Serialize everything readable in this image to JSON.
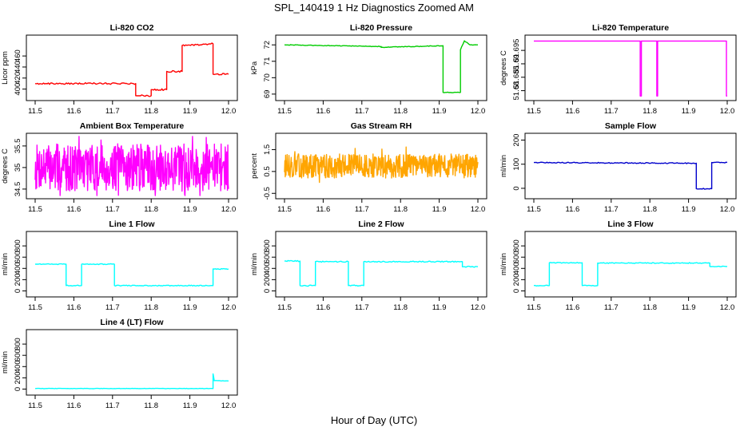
{
  "figure": {
    "title": "SPL_140419  1 Hz Diagnostics Zoomed AM",
    "xlabel": "Hour of Day (UTC)"
  },
  "chart_data": [
    {
      "type": "line",
      "title": "Li-820 CO2",
      "ylabel": "Licor ppm",
      "color": "#ff0000",
      "xlim": [
        11.5,
        12.0
      ],
      "ylim": [
        385,
        492
      ],
      "xticks": [
        "11.5",
        "11.6",
        "11.7",
        "11.8",
        "11.9",
        "12.0"
      ],
      "yticks": [
        400,
        420,
        440,
        460
      ],
      "series": [
        {
          "mode": "step",
          "noise": 1.5,
          "points": [
            [
              11.5,
              410
            ],
            [
              11.76,
              410
            ],
            [
              11.76,
              388
            ],
            [
              11.8,
              388
            ],
            [
              11.8,
              399
            ],
            [
              11.84,
              399
            ],
            [
              11.84,
              432
            ],
            [
              11.88,
              432
            ],
            [
              11.88,
              479
            ],
            [
              11.96,
              482
            ],
            [
              11.96,
              427
            ],
            [
              12.0,
              427
            ]
          ]
        }
      ]
    },
    {
      "type": "line",
      "title": "Li-820 Pressure",
      "ylabel": "kPa",
      "color": "#00cc00",
      "xlim": [
        11.5,
        12.0
      ],
      "ylim": [
        68.8,
        72.4
      ],
      "xticks": [
        "11.5",
        "11.6",
        "11.7",
        "11.8",
        "11.9",
        "12.0"
      ],
      "yticks": [
        69,
        70,
        71,
        72
      ],
      "series": [
        {
          "mode": "step",
          "noise": 0.02,
          "points": [
            [
              11.5,
              72.0
            ],
            [
              11.75,
              71.9
            ],
            [
              11.75,
              71.85
            ],
            [
              11.91,
              71.95
            ],
            [
              11.91,
              69.1
            ],
            [
              11.955,
              69.1
            ],
            [
              11.955,
              71.7
            ],
            [
              11.965,
              72.25
            ],
            [
              11.98,
              72.0
            ],
            [
              12.0,
              72.0
            ]
          ]
        }
      ]
    },
    {
      "type": "line",
      "title": "Li-820 Temperature",
      "ylabel": "degrees C",
      "color": "#ff00ff",
      "xlim": [
        11.5,
        12.0
      ],
      "ylim": [
        51.6775,
        51.6995
      ],
      "xticks": [
        "11.5",
        "11.6",
        "11.7",
        "11.8",
        "11.9",
        "12.0"
      ],
      "yticks": [
        51.68,
        51.685,
        51.69,
        51.695
      ],
      "series": [
        {
          "mode": "step",
          "noise": 0,
          "points": [
            [
              11.5,
              51.6985
            ],
            [
              11.775,
              51.6985
            ],
            [
              11.775,
              51.678
            ],
            [
              11.778,
              51.678
            ],
            [
              11.778,
              51.6985
            ],
            [
              11.818,
              51.6985
            ],
            [
              11.818,
              51.678
            ],
            [
              11.82,
              51.678
            ],
            [
              11.82,
              51.6985
            ],
            [
              11.998,
              51.6985
            ],
            [
              11.998,
              51.678
            ],
            [
              12.0,
              51.678
            ]
          ]
        }
      ]
    },
    {
      "type": "line",
      "title": "Ambient Box Temperature",
      "ylabel": "degrees C",
      "color": "#ff00ff",
      "xlim": [
        11.5,
        12.0
      ],
      "ylim": [
        34.35,
        35.72
      ],
      "xticks": [
        "11.5",
        "11.6",
        "11.7",
        "11.8",
        "11.9",
        "12.0"
      ],
      "yticks": [
        34.5,
        35.0,
        35.5
      ],
      "series": [
        {
          "mode": "noise",
          "base": 35.0,
          "amp": 0.55,
          "seed": 7,
          "points": [
            [
              11.5,
              35.0
            ],
            [
              12.0,
              35.0
            ]
          ]
        }
      ]
    },
    {
      "type": "line",
      "title": "Gas Stream RH",
      "ylabel": "percent",
      "color": "#ffa500",
      "xlim": [
        11.5,
        12.0
      ],
      "ylim": [
        -0.6,
        2.1
      ],
      "xticks": [
        "11.5",
        "11.6",
        "11.7",
        "11.8",
        "11.9",
        "12.0"
      ],
      "yticks": [
        -0.5,
        0.5,
        1.5
      ],
      "series": [
        {
          "mode": "noise",
          "base": 0.75,
          "amp": 0.55,
          "seed": 13,
          "points": [
            [
              11.5,
              0.75
            ],
            [
              12.0,
              0.75
            ]
          ]
        }
      ]
    },
    {
      "type": "line",
      "title": "Sample Flow",
      "ylabel": "ml/min",
      "color": "#0000cc",
      "xlim": [
        11.5,
        12.0
      ],
      "ylim": [
        -30,
        215
      ],
      "xticks": [
        "11.5",
        "11.6",
        "11.7",
        "11.8",
        "11.9",
        "12.0"
      ],
      "yticks": [
        0,
        100,
        200
      ],
      "series": [
        {
          "mode": "step",
          "noise": 2,
          "points": [
            [
              11.5,
              107
            ],
            [
              11.92,
              104
            ],
            [
              11.92,
              -2
            ],
            [
              11.96,
              -2
            ],
            [
              11.96,
              107
            ],
            [
              12.0,
              107
            ]
          ]
        }
      ]
    },
    {
      "type": "line",
      "title": "Line 1 Flow",
      "ylabel": "ml/min",
      "color": "#00ffff",
      "xlim": [
        11.5,
        12.0
      ],
      "ylim": [
        -50,
        1000
      ],
      "xticks": [
        "11.5",
        "11.6",
        "11.7",
        "11.8",
        "11.9",
        "12.0"
      ],
      "yticks": [
        0,
        200,
        400,
        600,
        800
      ],
      "series": [
        {
          "mode": "step",
          "noise": 8,
          "points": [
            [
              11.5,
              475
            ],
            [
              11.58,
              475
            ],
            [
              11.58,
              95
            ],
            [
              11.62,
              95
            ],
            [
              11.62,
              475
            ],
            [
              11.705,
              475
            ],
            [
              11.705,
              95
            ],
            [
              11.96,
              95
            ],
            [
              11.96,
              390
            ],
            [
              12.0,
              390
            ]
          ]
        }
      ]
    },
    {
      "type": "line",
      "title": "Line 2 Flow",
      "ylabel": "ml/min",
      "color": "#00ffff",
      "xlim": [
        11.5,
        12.0
      ],
      "ylim": [
        -50,
        1000
      ],
      "xticks": [
        "11.5",
        "11.6",
        "11.7",
        "11.8",
        "11.9",
        "12.0"
      ],
      "yticks": [
        0,
        200,
        400,
        600,
        800
      ],
      "series": [
        {
          "mode": "step",
          "noise": 10,
          "points": [
            [
              11.5,
              530
            ],
            [
              11.54,
              530
            ],
            [
              11.54,
              95
            ],
            [
              11.58,
              95
            ],
            [
              11.58,
              520
            ],
            [
              11.665,
              520
            ],
            [
              11.665,
              95
            ],
            [
              11.705,
              95
            ],
            [
              11.705,
              520
            ],
            [
              11.96,
              520
            ],
            [
              11.96,
              430
            ],
            [
              12.0,
              430
            ]
          ]
        }
      ]
    },
    {
      "type": "line",
      "title": "Line 3 Flow",
      "ylabel": "ml/min",
      "color": "#00ffff",
      "xlim": [
        11.5,
        12.0
      ],
      "ylim": [
        -50,
        1000
      ],
      "xticks": [
        "11.5",
        "11.6",
        "11.7",
        "11.8",
        "11.9",
        "12.0"
      ],
      "yticks": [
        0,
        200,
        400,
        600,
        800
      ],
      "series": [
        {
          "mode": "step",
          "noise": 8,
          "points": [
            [
              11.5,
              95
            ],
            [
              11.54,
              95
            ],
            [
              11.54,
              500
            ],
            [
              11.625,
              500
            ],
            [
              11.625,
              95
            ],
            [
              11.665,
              95
            ],
            [
              11.665,
              495
            ],
            [
              11.955,
              495
            ],
            [
              11.955,
              435
            ],
            [
              12.0,
              435
            ]
          ]
        }
      ]
    },
    {
      "type": "line",
      "title": "Line 4 (LT) Flow",
      "ylabel": "ml/min",
      "color": "#00ffff",
      "xlim": [
        11.5,
        12.0
      ],
      "ylim": [
        -50,
        1000
      ],
      "xticks": [
        "11.5",
        "11.6",
        "11.7",
        "11.8",
        "11.9",
        "12.0"
      ],
      "yticks": [
        0,
        200,
        400,
        600,
        800
      ],
      "series": [
        {
          "mode": "step",
          "noise": 3,
          "points": [
            [
              11.5,
              10
            ],
            [
              11.96,
              10
            ],
            [
              11.96,
              270
            ],
            [
              11.963,
              150
            ],
            [
              12.0,
              145
            ]
          ]
        }
      ]
    }
  ]
}
